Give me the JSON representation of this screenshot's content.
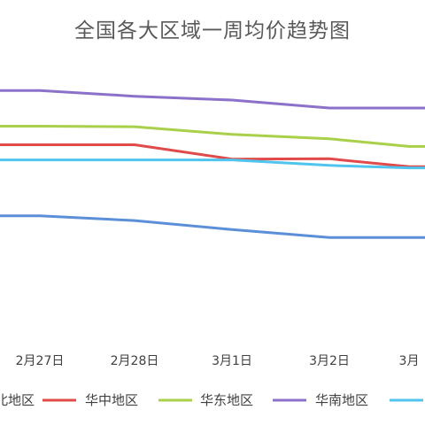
{
  "chart_data": {
    "type": "line",
    "title": "全国各大区域一周均价趋势图",
    "categories": [
      "2月27日",
      "2月28日",
      "3月1日",
      "3月2日",
      "3月"
    ],
    "xlabel": "",
    "ylabel": "",
    "grid": false,
    "legend_position": "bottom",
    "ylim": [
      0,
      100
    ],
    "series": [
      {
        "name": "北地区",
        "color": "#5B8FD8",
        "values": [
          40.7,
          39.0,
          35.7,
          32.8,
          32.8
        ]
      },
      {
        "name": "华中地区",
        "color": "#E04A4A",
        "values": [
          66.6,
          66.6,
          61.4,
          61.5,
          58.6
        ]
      },
      {
        "name": "华东地区",
        "color": "#A9D04A",
        "values": [
          73.4,
          73.2,
          70.4,
          68.8,
          66.0
        ]
      },
      {
        "name": "华南地区",
        "color": "#8B71C9",
        "values": [
          86.4,
          84.3,
          82.9,
          80.0,
          80.0
        ]
      },
      {
        "name": "华北地区",
        "color": "#4FC4EE",
        "values": [
          61.1,
          61.1,
          61.1,
          59.1,
          58.2
        ]
      }
    ]
  }
}
